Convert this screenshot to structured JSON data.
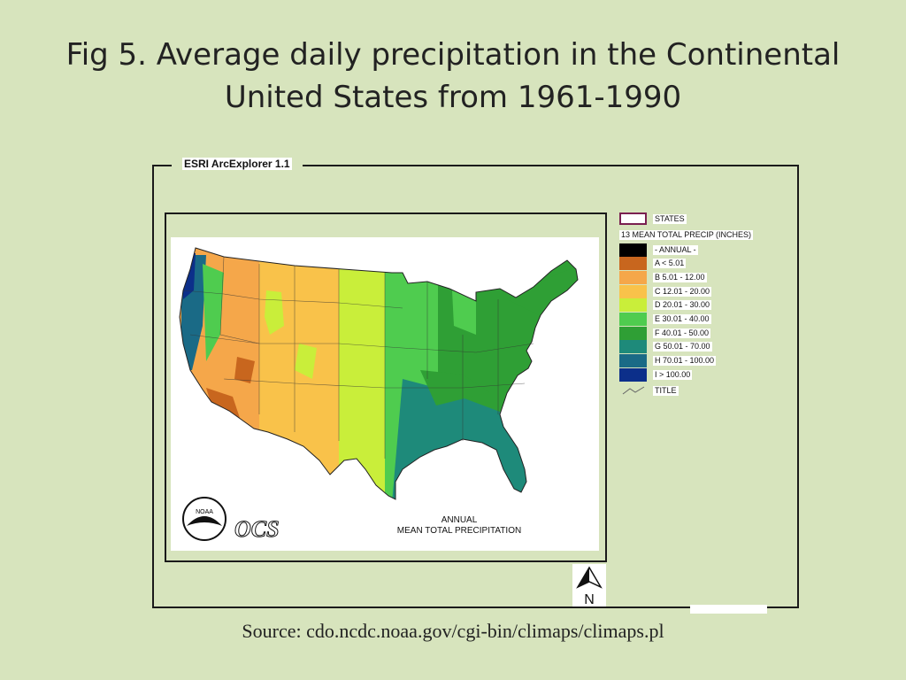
{
  "title": "Fig 5. Average daily precipitation in the Continental United States from 1961-1990",
  "viewer": {
    "app_name": "ESRI ArcExplorer 1.1"
  },
  "map": {
    "caption_line1": "ANNUAL",
    "caption_line2": "MEAN TOTAL PRECIPITATION",
    "agency_logo_text": "NOAA",
    "ocs_logo": "OCS",
    "north_arrow_label": "N"
  },
  "legend": {
    "states_label": "STATES",
    "layer_title": "13 MEAN TOTAL PRECIP (INCHES)",
    "items": [
      {
        "label": "- ANNUAL -",
        "color": "#000000"
      },
      {
        "label": "A < 5.01",
        "color": "#c8661e"
      },
      {
        "label": "B 5.01 - 12.00",
        "color": "#f5a74a"
      },
      {
        "label": "C 12.01 - 20.00",
        "color": "#f9c24a"
      },
      {
        "label": "D 20.01 - 30.00",
        "color": "#c9ee3a"
      },
      {
        "label": "E 30.01 - 40.00",
        "color": "#4fcc4f"
      },
      {
        "label": "F 40.01 - 50.00",
        "color": "#2f9f35"
      },
      {
        "label": "G 50.01 - 70.00",
        "color": "#1e8a7a"
      },
      {
        "label": "H 70.01 - 100.00",
        "color": "#1a6a86"
      },
      {
        "label": "I > 100.00",
        "color": "#0c2f8a"
      }
    ],
    "title_item_label": "TITLE"
  },
  "source": "Source: cdo.ncdc.noaa.gov/cgi-bin/climaps/climaps.pl"
}
